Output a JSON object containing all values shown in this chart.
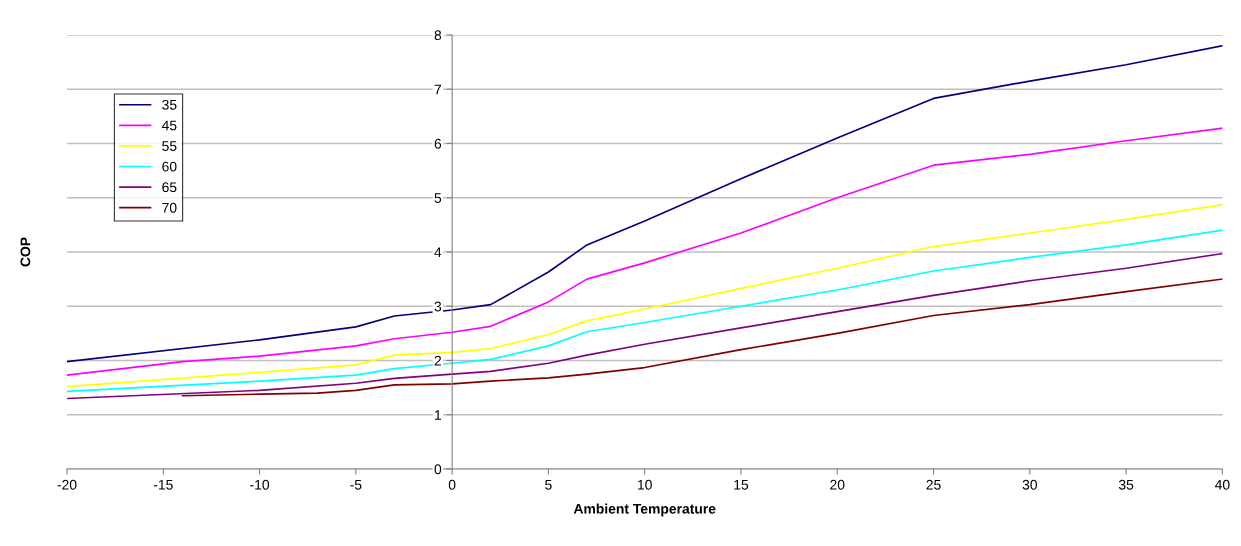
{
  "chart_data": {
    "type": "line",
    "xlabel": "Ambient Temperature",
    "ylabel": "COP",
    "xlim": [
      -20,
      40
    ],
    "xticks": [
      -20,
      -15,
      -10,
      -5,
      0,
      5,
      10,
      15,
      20,
      25,
      30,
      35,
      40
    ],
    "ylim": [
      0,
      8
    ],
    "yticks": [
      0,
      1,
      2,
      3,
      4,
      5,
      6,
      7,
      8
    ],
    "grid": "y",
    "legend": "top left",
    "marker": "none",
    "line_style": "solid",
    "series": [
      {
        "name": "35",
        "color": "#000080",
        "x": [
          -20,
          -10,
          -5,
          -3,
          0,
          2,
          5,
          7,
          10,
          15,
          20,
          25,
          30,
          35,
          40
        ],
        "values": [
          1.98,
          2.38,
          2.62,
          2.82,
          2.93,
          3.03,
          3.63,
          4.13,
          4.57,
          5.35,
          6.1,
          6.83,
          7.15,
          7.45,
          7.8
        ]
      },
      {
        "name": "45",
        "color": "#ff00ff",
        "x": [
          -20,
          -14,
          -10,
          -5,
          -3,
          0,
          2,
          5,
          7,
          10,
          15,
          20,
          25,
          30,
          35,
          40
        ],
        "values": [
          1.73,
          1.98,
          2.08,
          2.27,
          2.4,
          2.52,
          2.63,
          3.08,
          3.5,
          3.8,
          4.35,
          5.0,
          5.6,
          5.8,
          6.05,
          6.28
        ]
      },
      {
        "name": "55",
        "color": "#ffff00",
        "x": [
          -20,
          -10,
          -5,
          -3,
          0,
          2,
          5,
          7,
          10,
          15,
          20,
          25,
          30,
          35,
          40
        ],
        "values": [
          1.52,
          1.78,
          1.92,
          2.1,
          2.15,
          2.22,
          2.48,
          2.73,
          2.95,
          3.33,
          3.7,
          4.1,
          4.35,
          4.6,
          4.87
        ]
      },
      {
        "name": "60",
        "color": "#00ffff",
        "x": [
          -20,
          -10,
          -5,
          -3,
          0,
          2,
          5,
          7,
          10,
          15,
          20,
          25,
          30,
          35,
          40
        ],
        "values": [
          1.43,
          1.62,
          1.73,
          1.85,
          1.95,
          2.02,
          2.27,
          2.53,
          2.7,
          3.0,
          3.3,
          3.65,
          3.9,
          4.13,
          4.4
        ]
      },
      {
        "name": "65",
        "color": "#800080",
        "x": [
          -20,
          -10,
          -5,
          -3,
          0,
          2,
          5,
          7,
          10,
          15,
          20,
          25,
          30,
          35,
          40
        ],
        "values": [
          1.3,
          1.45,
          1.58,
          1.67,
          1.75,
          1.8,
          1.95,
          2.1,
          2.3,
          2.6,
          2.9,
          3.2,
          3.47,
          3.7,
          3.97
        ]
      },
      {
        "name": "70",
        "color": "#800000",
        "x": [
          -14,
          -10,
          -7,
          -5,
          -3,
          0,
          2,
          5,
          7,
          10,
          15,
          20,
          25,
          30,
          35,
          40
        ],
        "values": [
          1.35,
          1.38,
          1.4,
          1.45,
          1.55,
          1.57,
          1.62,
          1.68,
          1.75,
          1.87,
          2.2,
          2.5,
          2.83,
          3.03,
          3.27,
          3.5
        ]
      }
    ]
  }
}
